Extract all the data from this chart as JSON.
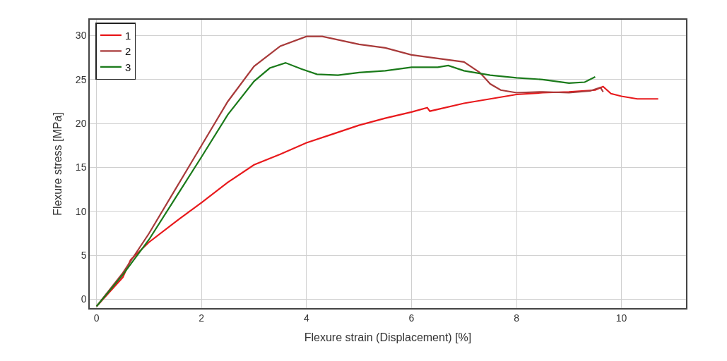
{
  "chart_data": {
    "type": "line",
    "xlabel": "Flexure strain (Displacement) [%]",
    "ylabel": "Flexure stress [MPa]",
    "xlim": [
      -0.13,
      11.23
    ],
    "ylim": [
      -1,
      31.8
    ],
    "xticks": [
      0,
      2,
      4,
      6,
      8,
      10
    ],
    "yticks": [
      0,
      5,
      10,
      15,
      20,
      25,
      30
    ],
    "grid": true,
    "legend": "top left",
    "marker": "none",
    "line_style": "solid",
    "series": [
      {
        "name": "1",
        "color": "#e8191c",
        "x": [
          0,
          0.5,
          0.65,
          1,
          1.5,
          2,
          2.5,
          3,
          3.5,
          4,
          4.5,
          5,
          5.5,
          6,
          6.3,
          6.35,
          7,
          7.5,
          8,
          8.5,
          9,
          9.5,
          9.65,
          9.8,
          10,
          10.3,
          10.7
        ],
        "values": [
          -0.8,
          2.5,
          4.5,
          6.5,
          8.8,
          11,
          13.3,
          15.3,
          16.5,
          17.8,
          18.8,
          19.8,
          20.6,
          21.3,
          21.8,
          21.4,
          22.3,
          22.8,
          23.3,
          23.5,
          23.6,
          23.8,
          24.2,
          23.4,
          23.1,
          22.8,
          22.8
        ]
      },
      {
        "name": "2",
        "color": "#a83a3a",
        "x": [
          0,
          0.5,
          1,
          1.5,
          2,
          2.5,
          3,
          3.5,
          4,
          4.3,
          5,
          5.5,
          6,
          6.5,
          7,
          7.3,
          7.5,
          7.7,
          8,
          8.5,
          9,
          9.4,
          9.6,
          9.65
        ],
        "values": [
          -0.8,
          3,
          7.5,
          12.5,
          17.5,
          22.5,
          26.5,
          28.8,
          29.9,
          29.9,
          29,
          28.6,
          27.8,
          27.4,
          27,
          25.8,
          24.5,
          23.8,
          23.5,
          23.6,
          23.5,
          23.7,
          24.1,
          23.6
        ]
      },
      {
        "name": "3",
        "color": "#1a7a1a",
        "x": [
          0,
          0.5,
          1,
          1.5,
          2,
          2.5,
          3,
          3.3,
          3.6,
          3.9,
          4.2,
          4.6,
          5,
          5.5,
          6,
          6.5,
          6.7,
          7,
          7.5,
          8,
          8.5,
          9,
          9.3,
          9.5
        ],
        "values": [
          -0.8,
          2.8,
          6.8,
          11.5,
          16.2,
          21,
          24.8,
          26.3,
          26.9,
          26.2,
          25.6,
          25.5,
          25.8,
          26,
          26.4,
          26.4,
          26.6,
          26,
          25.5,
          25.2,
          25,
          24.6,
          24.7,
          25.3
        ]
      }
    ]
  }
}
